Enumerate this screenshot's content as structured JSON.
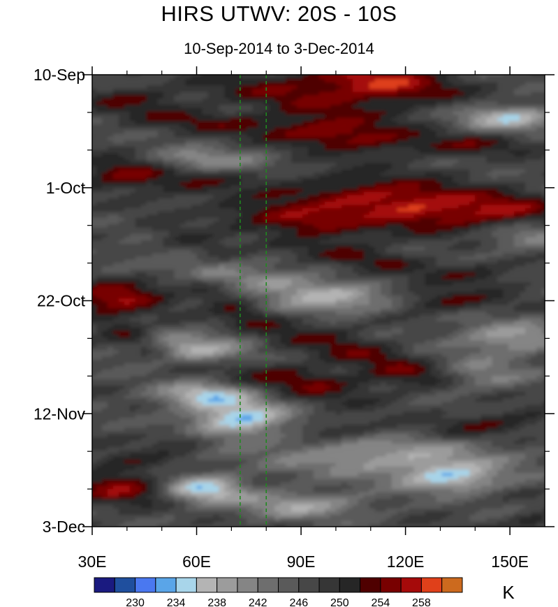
{
  "chart_data": {
    "type": "heatmap",
    "title": "HIRS UTWV: 20S - 10S",
    "subtitle": "10-Sep-2014 to 3-Dec-2014",
    "xlabel": "",
    "ylabel": "",
    "x_range": [
      30,
      160
    ],
    "x_ticks": [
      {
        "value": 30,
        "label": "30E"
      },
      {
        "value": 60,
        "label": "60E"
      },
      {
        "value": 90,
        "label": "90E"
      },
      {
        "value": 120,
        "label": "120E"
      },
      {
        "value": 150,
        "label": "150E"
      }
    ],
    "y_range_days": [
      0,
      84
    ],
    "y_ticks": [
      {
        "day": 0,
        "label": "10-Sep"
      },
      {
        "day": 21,
        "label": "1-Oct"
      },
      {
        "day": 42,
        "label": "22-Oct"
      },
      {
        "day": 63,
        "label": "12-Nov"
      },
      {
        "day": 84,
        "label": "3-Dec"
      }
    ],
    "reference_lines_lon": [
      72.5,
      80
    ],
    "colorbar": {
      "units": "K",
      "levels": [
        228,
        230,
        232,
        234,
        236,
        238,
        240,
        242,
        244,
        246,
        248,
        250,
        252,
        254,
        256,
        258,
        260
      ],
      "labeled_levels": [
        230,
        234,
        238,
        242,
        246,
        250,
        254,
        258
      ],
      "colors": [
        "#1a1a80",
        "#1f4f9e",
        "#4a78f0",
        "#5aa5e8",
        "#a8d5ea",
        "#b4b4b4",
        "#9c9c9c",
        "#858585",
        "#6e6e6e",
        "#5a5a5a",
        "#474747",
        "#363636",
        "#262626",
        "#4f0000",
        "#780000",
        "#a50a0a",
        "#e0401a",
        "#cc6a1e"
      ]
    },
    "features": [
      {
        "lon": 115,
        "day": 1.5,
        "value": 259,
        "label": "orange core"
      },
      {
        "lon": 97,
        "day": 10.5,
        "value": 258
      },
      {
        "lon": 125,
        "day": 25,
        "value": 259
      },
      {
        "lon": 38,
        "day": 18.5,
        "value": 257
      },
      {
        "lon": 37,
        "day": 41.5,
        "value": 257
      },
      {
        "lon": 150,
        "day": 8,
        "value": 236
      },
      {
        "lon": 68,
        "day": 64,
        "value": 234
      },
      {
        "lon": 63,
        "day": 77.5,
        "value": 234
      },
      {
        "lon": 132,
        "day": 75,
        "value": 234
      }
    ]
  }
}
